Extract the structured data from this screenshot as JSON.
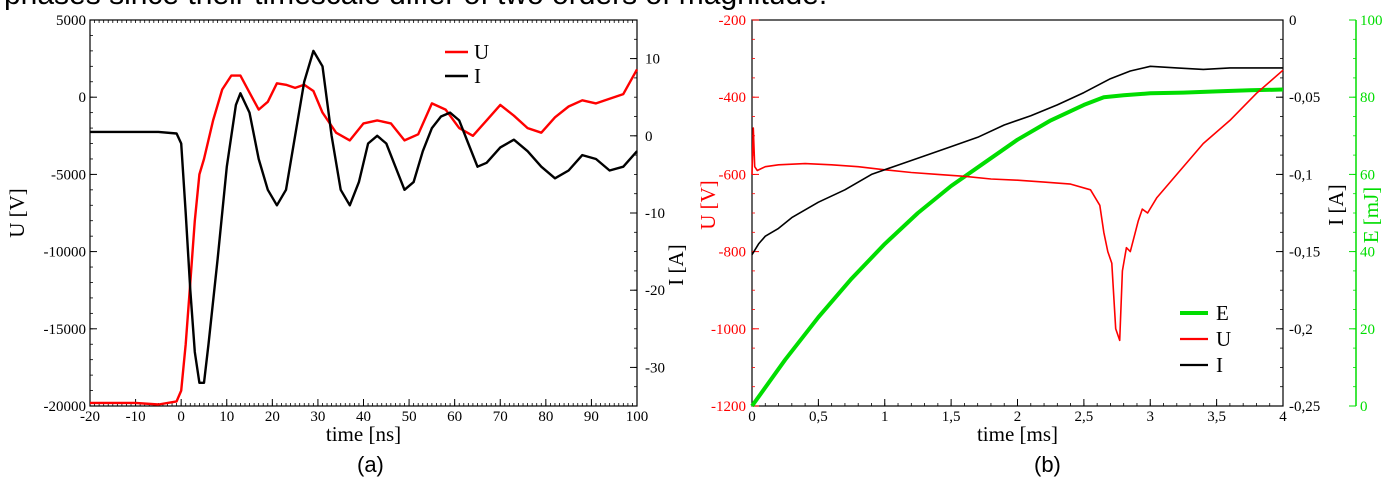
{
  "page": {
    "caption_fragment": "phases since their timescale differ of two orders of magnitude.",
    "panel_labels": [
      "(a)",
      "(b)"
    ]
  },
  "chart_data": [
    {
      "type": "line",
      "panel": "(a)",
      "xlabel": "time  [ns]",
      "ylabel_left": "U [V]",
      "ylabel_right": "I [A]",
      "xlim": [
        -20,
        100
      ],
      "ylim_left": [
        -20000,
        5000
      ],
      "ylim_right": [
        -35,
        15
      ],
      "x_ticks": [
        -20,
        -10,
        0,
        10,
        20,
        30,
        40,
        50,
        60,
        70,
        80,
        90,
        100
      ],
      "y_left_ticks": [
        -20000,
        -15000,
        -10000,
        -5000,
        0,
        5000
      ],
      "y_right_ticks": [
        -30,
        -20,
        -10,
        0,
        10
      ],
      "legend": {
        "placement": "top-right",
        "entries": [
          "U",
          "I"
        ]
      },
      "colors": {
        "U": "#ff0000",
        "I": "#000000"
      },
      "series": [
        {
          "name": "U",
          "axis": "left",
          "x": [
            -20,
            -10,
            -5,
            -1,
            0,
            1,
            2,
            3,
            4,
            5,
            7,
            9,
            11,
            13,
            15,
            17,
            19,
            21,
            23,
            25,
            27,
            29,
            31,
            34,
            37,
            40,
            43,
            46,
            49,
            52,
            55,
            58,
            61,
            64,
            67,
            70,
            73,
            76,
            79,
            82,
            85,
            88,
            91,
            94,
            97,
            100
          ],
          "y": [
            -19800,
            -19800,
            -19900,
            -19700,
            -19000,
            -16000,
            -12000,
            -8000,
            -5000,
            -4000,
            -1500,
            500,
            1400,
            1400,
            300,
            -800,
            -300,
            900,
            800,
            600,
            800,
            400,
            -1000,
            -2300,
            -2800,
            -1700,
            -1500,
            -1700,
            -2800,
            -2400,
            -400,
            -800,
            -2000,
            -2500,
            -1500,
            -500,
            -1200,
            -2000,
            -2300,
            -1300,
            -600,
            -200,
            -400,
            -100,
            200,
            1800
          ]
        },
        {
          "name": "I",
          "axis": "right",
          "x": [
            -20,
            -10,
            -5,
            -1,
            0,
            1,
            2,
            3,
            4,
            5,
            6,
            8,
            10,
            12,
            13,
            15,
            17,
            19,
            21,
            23,
            25,
            27,
            29,
            31,
            33,
            35,
            37,
            39,
            41,
            43,
            45,
            47,
            49,
            51,
            53,
            55,
            57,
            59,
            61,
            63,
            65,
            67,
            70,
            73,
            76,
            79,
            82,
            85,
            88,
            91,
            94,
            97,
            100
          ],
          "y": [
            0.5,
            0.5,
            0.5,
            0.3,
            -1,
            -10,
            -20,
            -28,
            -32,
            -32,
            -27,
            -16,
            -4,
            4,
            5.5,
            3,
            -3,
            -7,
            -9,
            -7,
            0,
            7,
            11,
            9,
            0,
            -7,
            -9,
            -6,
            -1,
            0,
            -1,
            -4,
            -7,
            -6,
            -2,
            1,
            2.5,
            3,
            2,
            -1,
            -4,
            -3.5,
            -1.5,
            -0.5,
            -2,
            -4,
            -5.5,
            -4.5,
            -2.5,
            -3,
            -4.5,
            -4,
            -2
          ]
        }
      ]
    },
    {
      "type": "line",
      "panel": "(b)",
      "xlabel": "time [ms]",
      "ylabel_left": "U [V]",
      "ylabel_right_1": "I [A]",
      "ylabel_right_2": "E [mJ]",
      "xlim": [
        0,
        4
      ],
      "ylim_left": [
        -1200,
        -200
      ],
      "ylim_right_1": [
        -0.25,
        0
      ],
      "ylim_right_2": [
        0,
        100
      ],
      "x_ticks": [
        "0",
        "0,5",
        "1",
        "1,5",
        "2",
        "2,5",
        "3",
        "3,5",
        "4"
      ],
      "x_tick_values": [
        0,
        0.5,
        1,
        1.5,
        2,
        2.5,
        3,
        3.5,
        4
      ],
      "y_left_ticks": [
        -1200,
        -1000,
        -800,
        -600,
        -400,
        -200
      ],
      "y_right_1_ticks": [
        "-0,25",
        "-0,2",
        "-0,15",
        "-0,1",
        "-0,05",
        "0"
      ],
      "y_right_1_tick_values": [
        -0.25,
        -0.2,
        -0.15,
        -0.1,
        -0.05,
        0
      ],
      "y_right_2_ticks": [
        0,
        20,
        40,
        60,
        80,
        100
      ],
      "legend": {
        "placement": "bottom-right",
        "entries": [
          "E",
          "U",
          "I"
        ]
      },
      "colors": {
        "E": "#00dd00",
        "U": "#ff0000",
        "I": "#000000"
      },
      "series": [
        {
          "name": "E",
          "axis": "right_2",
          "x": [
            0,
            0.25,
            0.5,
            0.75,
            1,
            1.25,
            1.5,
            1.75,
            2,
            2.25,
            2.5,
            2.65,
            2.8,
            3,
            3.25,
            3.5,
            3.75,
            4
          ],
          "y": [
            0,
            12,
            23,
            33,
            42,
            50,
            57,
            63,
            69,
            74,
            78,
            80,
            80.5,
            81,
            81.2,
            81.5,
            81.8,
            82
          ]
        },
        {
          "name": "U",
          "axis": "left",
          "x": [
            0,
            0.01,
            0.02,
            0.04,
            0.1,
            0.2,
            0.4,
            0.6,
            0.8,
            1,
            1.2,
            1.4,
            1.6,
            1.8,
            2,
            2.2,
            2.4,
            2.55,
            2.62,
            2.65,
            2.68,
            2.71,
            2.74,
            2.77,
            2.79,
            2.82,
            2.85,
            2.88,
            2.91,
            2.94,
            2.98,
            3.05,
            3.2,
            3.4,
            3.6,
            3.8,
            4
          ],
          "y": [
            -600,
            -480,
            -580,
            -590,
            -580,
            -575,
            -572,
            -575,
            -580,
            -588,
            -595,
            -600,
            -605,
            -612,
            -615,
            -620,
            -625,
            -640,
            -680,
            -750,
            -800,
            -830,
            -1000,
            -1030,
            -850,
            -790,
            -800,
            -760,
            -720,
            -690,
            -700,
            -660,
            -600,
            -520,
            -460,
            -390,
            -330
          ]
        },
        {
          "name": "I",
          "axis": "right_1",
          "x": [
            0,
            0.05,
            0.1,
            0.2,
            0.3,
            0.5,
            0.7,
            0.9,
            1.1,
            1.3,
            1.5,
            1.7,
            1.9,
            2.1,
            2.3,
            2.5,
            2.7,
            2.85,
            3,
            3.2,
            3.4,
            3.6,
            3.8,
            4
          ],
          "y": [
            -0.152,
            -0.145,
            -0.14,
            -0.135,
            -0.128,
            -0.118,
            -0.11,
            -0.1,
            -0.094,
            -0.088,
            -0.082,
            -0.076,
            -0.068,
            -0.062,
            -0.055,
            -0.047,
            -0.038,
            -0.033,
            -0.03,
            -0.031,
            -0.032,
            -0.031,
            -0.031,
            -0.031
          ]
        }
      ]
    }
  ]
}
